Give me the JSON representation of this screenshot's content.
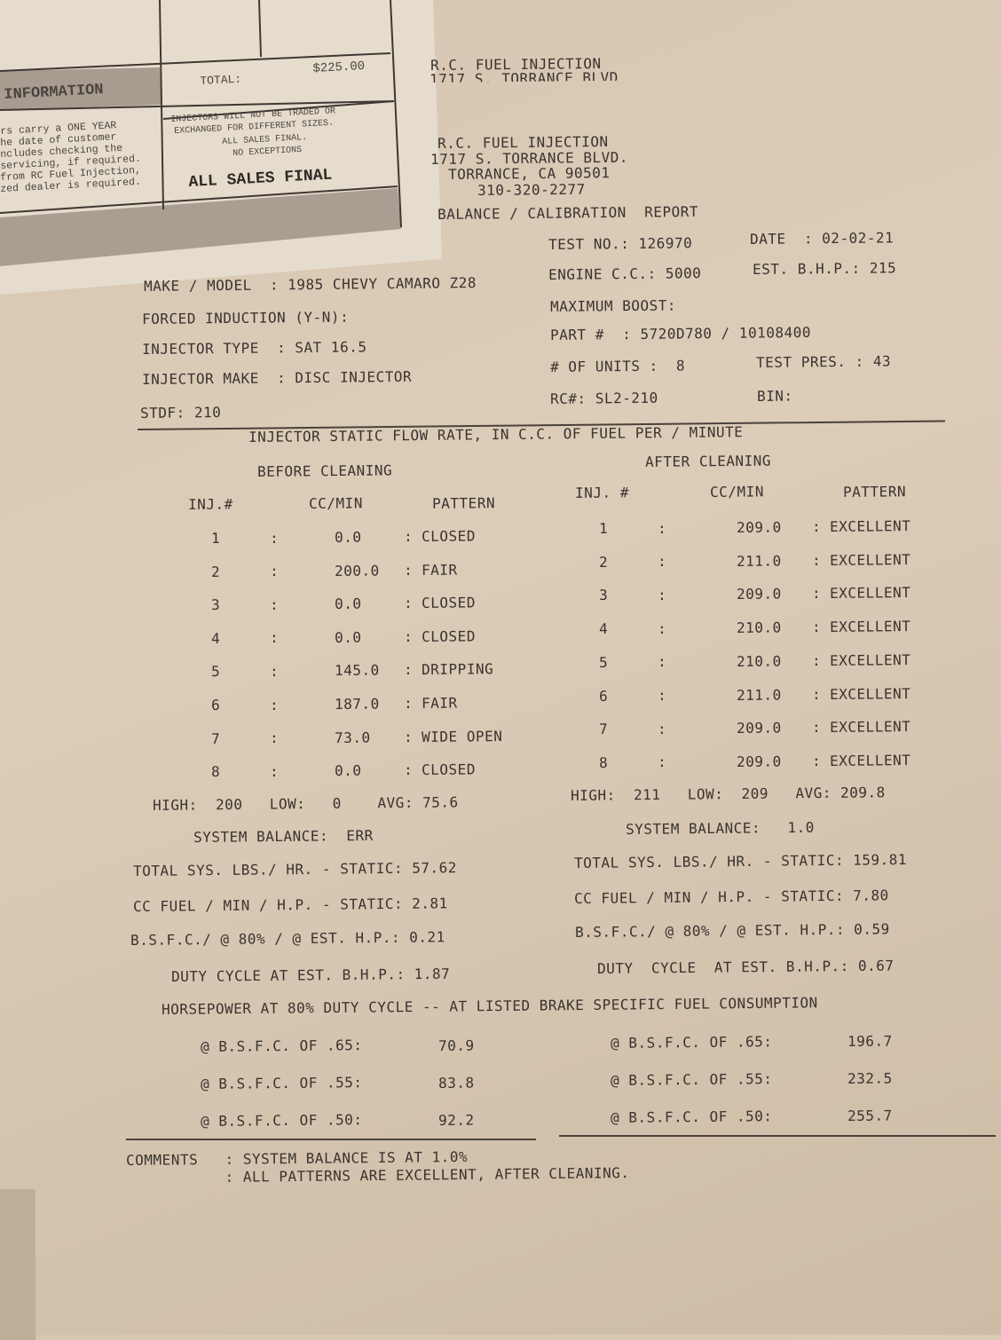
{
  "receipt": {
    "total_label": "TOTAL:",
    "total_value": "$225.00",
    "info_heading": "INFORMATION",
    "warranty_lines": [
      "rs carry a ONE YEAR",
      "he date of customer",
      "ncludes checking the",
      "servicing, if required.",
      "from RC Fuel Injection,",
      "zed dealer is required."
    ],
    "policy_lines": [
      "INJECTORS WILL NOT BE TRADED OR",
      "EXCHANGED FOR DIFFERENT SIZES.",
      "ALL SALES FINAL.",
      "NO EXCEPTIONS"
    ],
    "all_sales_final": "ALL SALES FINAL"
  },
  "header_cut": [
    "R.C. FUEL INJECTION",
    "1717 S. TORRANCE BLVD"
  ],
  "header": [
    "R.C. FUEL INJECTION",
    "1717 S. TORRANCE BLVD.",
    "TORRANCE, CA 90501",
    "310-320-2277"
  ],
  "report_title": "BALANCE / CALIBRATION  REPORT",
  "info": {
    "test_no": "TEST NO.: 126970",
    "date": "DATE  : 02-02-21",
    "make_model": "MAKE / MODEL  : 1985 CHEVY CAMARO Z28",
    "engine_cc": "ENGINE C.C.: 5000",
    "est_bhp": "EST. B.H.P.: 215",
    "forced_induction": "FORCED INDUCTION (Y-N):",
    "max_boost": "MAXIMUM BOOST:",
    "injector_type": "INJECTOR TYPE  : SAT 16.5",
    "part_no": "PART #  : 5720D780 / 10108400",
    "injector_make": "INJECTOR MAKE  : DISC INJECTOR",
    "units": "# OF UNITS :  8",
    "test_pres": "TEST PRES. : 43",
    "stdf": "STDF: 210",
    "rc_no": "RC#: SL2-210",
    "bin": "BIN:"
  },
  "flow_title": "INJECTOR STATIC FLOW RATE, IN C.C. OF FUEL PER / MINUTE",
  "before": {
    "title": "BEFORE CLEANING",
    "headers": [
      "INJ.#",
      "CC/MIN",
      "PATTERN"
    ],
    "rows": [
      [
        "1",
        "0.0",
        "CLOSED"
      ],
      [
        "2",
        "200.0",
        "FAIR"
      ],
      [
        "3",
        "0.0",
        "CLOSED"
      ],
      [
        "4",
        "0.0",
        "CLOSED"
      ],
      [
        "5",
        "145.0",
        "DRIPPING"
      ],
      [
        "6",
        "187.0",
        "FAIR"
      ],
      [
        "7",
        "73.0",
        "WIDE OPEN"
      ],
      [
        "8",
        "0.0",
        "CLOSED"
      ]
    ],
    "summary": "HIGH:  200   LOW:   0    AVG: 75.6",
    "balance": "SYSTEM BALANCE:  ERR",
    "lbs_hr": "TOTAL SYS. LBS./ HR. - STATIC: 57.62",
    "cc_hp": "CC FUEL / MIN / H.P. - STATIC: 2.81",
    "bsfc": "B.S.F.C./ @ 80% / @ EST. H.P.: 0.21",
    "duty": "DUTY CYCLE AT EST. B.H.P.: 1.87",
    "hp": [
      [
        "@ B.S.F.C. OF .65:",
        "70.9"
      ],
      [
        "@ B.S.F.C. OF .55:",
        "83.8"
      ],
      [
        "@ B.S.F.C. OF .50:",
        "92.2"
      ]
    ]
  },
  "after": {
    "title": "AFTER CLEANING",
    "headers": [
      "INJ. #",
      "CC/MIN",
      "PATTERN"
    ],
    "rows": [
      [
        "1",
        "209.0",
        "EXCELLENT"
      ],
      [
        "2",
        "211.0",
        "EXCELLENT"
      ],
      [
        "3",
        "209.0",
        "EXCELLENT"
      ],
      [
        "4",
        "210.0",
        "EXCELLENT"
      ],
      [
        "5",
        "210.0",
        "EXCELLENT"
      ],
      [
        "6",
        "211.0",
        "EXCELLENT"
      ],
      [
        "7",
        "209.0",
        "EXCELLENT"
      ],
      [
        "8",
        "209.0",
        "EXCELLENT"
      ]
    ],
    "summary": "HIGH:  211   LOW:  209   AVG: 209.8",
    "balance": "SYSTEM BALANCE:   1.0",
    "lbs_hr": "TOTAL SYS. LBS./ HR. - STATIC: 159.81",
    "cc_hp": "CC FUEL / MIN / H.P. - STATIC: 7.80",
    "bsfc": "B.S.F.C./ @ 80% / @ EST. H.P.: 0.59",
    "duty": "DUTY  CYCLE  AT EST. B.H.P.: 0.67",
    "hp": [
      [
        "@ B.S.F.C. OF .65:",
        "196.7"
      ],
      [
        "@ B.S.F.C. OF .55:",
        "232.5"
      ],
      [
        "@ B.S.F.C. OF .50:",
        "255.7"
      ]
    ]
  },
  "hp_title": "HORSEPOWER AT 80% DUTY CYCLE -- AT LISTED BRAKE SPECIFIC FUEL CONSUMPTION",
  "comments": [
    "COMMENTS   : SYSTEM BALANCE IS AT 1.0%",
    "           : ALL PATTERNS ARE EXCELLENT, AFTER CLEANING."
  ]
}
